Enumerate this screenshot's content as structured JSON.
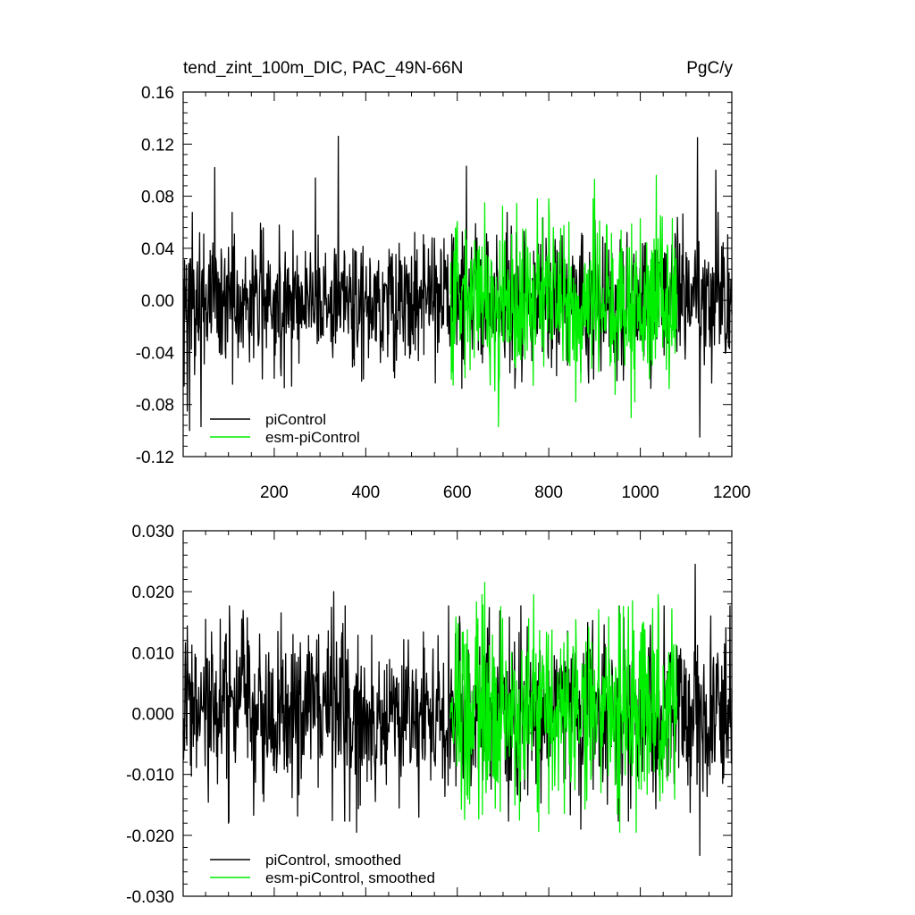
{
  "title": "tend_zint_100m_DIC, PAC_49N-66N",
  "units": "PgC/y",
  "chart_data": [
    {
      "type": "line",
      "xlim": [
        1,
        1200
      ],
      "ylim": [
        -0.12,
        0.16
      ],
      "xticks": [
        200,
        400,
        600,
        800,
        1000,
        1200
      ],
      "xtick_labels": [
        "200",
        "400",
        "600",
        "800",
        "1000",
        "1200"
      ],
      "yticks": [
        -0.12,
        -0.08,
        -0.04,
        0.0,
        0.04,
        0.08,
        0.12,
        0.16
      ],
      "ytick_labels": [
        "-0.12",
        "-0.08",
        "-0.04",
        "0.00",
        "0.04",
        "0.08",
        "0.12",
        "0.16"
      ],
      "legend_position": "bottom-left",
      "series": [
        {
          "name": "piControl",
          "color": "#000000",
          "x_range": [
            1,
            1200
          ],
          "y_std": 0.026,
          "y_extremes": [
            [
              10,
              -0.085
            ],
            [
              15,
              -0.1
            ],
            [
              40,
              -0.097
            ],
            [
              70,
              0.102
            ],
            [
              340,
              0.126
            ],
            [
              290,
              0.094
            ],
            [
              620,
              0.103
            ],
            [
              1125,
              0.125
            ],
            [
              1130,
              -0.105
            ],
            [
              1165,
              0.1
            ]
          ]
        },
        {
          "name": "esm-piControl",
          "color": "#00ee00",
          "x_range": [
            585,
            1080
          ],
          "y_std": 0.03,
          "y_extremes": [
            [
              660,
              0.075
            ],
            [
              690,
              -0.097
            ],
            [
              900,
              0.093
            ],
            [
              1035,
              0.096
            ],
            [
              980,
              -0.09
            ]
          ]
        }
      ]
    },
    {
      "type": "line",
      "xlim": [
        1,
        1200
      ],
      "ylim": [
        -0.03,
        0.03
      ],
      "xticks": [
        200,
        400,
        600,
        800,
        1000,
        1200
      ],
      "yticks": [
        -0.03,
        -0.02,
        -0.01,
        0.0,
        0.01,
        0.02,
        0.03
      ],
      "ytick_labels": [
        "-0.030",
        "-0.020",
        "-0.010",
        "0.000",
        "0.010",
        "0.020",
        "0.030"
      ],
      "legend_position": "bottom-left",
      "series": [
        {
          "name": "piControl, smoothed",
          "color": "#000000",
          "x_range": [
            1,
            1200
          ],
          "y_std": 0.0068,
          "y_extremes": [
            [
              330,
              0.02
            ],
            [
              1120,
              0.0245
            ],
            [
              1130,
              -0.0233
            ],
            [
              100,
              -0.018
            ],
            [
              380,
              -0.0195
            ],
            [
              870,
              -0.019
            ]
          ]
        },
        {
          "name": "esm-piControl, smoothed",
          "color": "#00ee00",
          "x_range": [
            585,
            1080
          ],
          "y_std": 0.0075,
          "y_extremes": [
            [
              660,
              0.0215
            ],
            [
              950,
              -0.0165
            ],
            [
              1040,
              0.0165
            ]
          ]
        }
      ]
    }
  ]
}
